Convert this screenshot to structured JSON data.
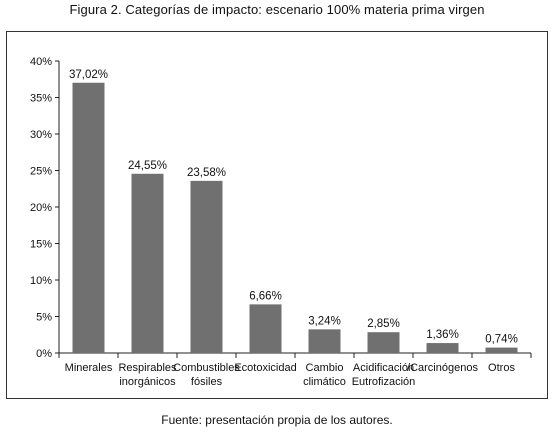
{
  "title": "Figura 2. Categorías de impacto: escenario 100% materia prima virgen",
  "source": "Fuente: presentación propia de los autores.",
  "chart_data": {
    "type": "bar",
    "categories": [
      [
        "Minerales"
      ],
      [
        "Respirables",
        "inorgánicos"
      ],
      [
        "Combustibles",
        "fósiles"
      ],
      [
        "Ecotoxicidad"
      ],
      [
        "Cambio",
        "climático"
      ],
      [
        "Acidificación",
        "Eutrofización"
      ],
      [
        "/Carcinógenos"
      ],
      [
        "Otros"
      ]
    ],
    "values": [
      37.02,
      24.55,
      23.58,
      6.66,
      3.24,
      2.85,
      1.36,
      0.74
    ],
    "data_labels": [
      "37,02%",
      "24,55%",
      "23,58%",
      "6,66%",
      "3,24%",
      "2,85%",
      "1,36%",
      "0,74%"
    ],
    "yticks": [
      0,
      5,
      10,
      15,
      20,
      25,
      30,
      35,
      40
    ],
    "ytick_labels": [
      "0%",
      "5%",
      "10%",
      "15%",
      "20%",
      "25%",
      "30%",
      "35%",
      "40%"
    ],
    "ylim": [
      0,
      40
    ],
    "grid": false,
    "legend": "none",
    "bar_color": "#707070"
  }
}
